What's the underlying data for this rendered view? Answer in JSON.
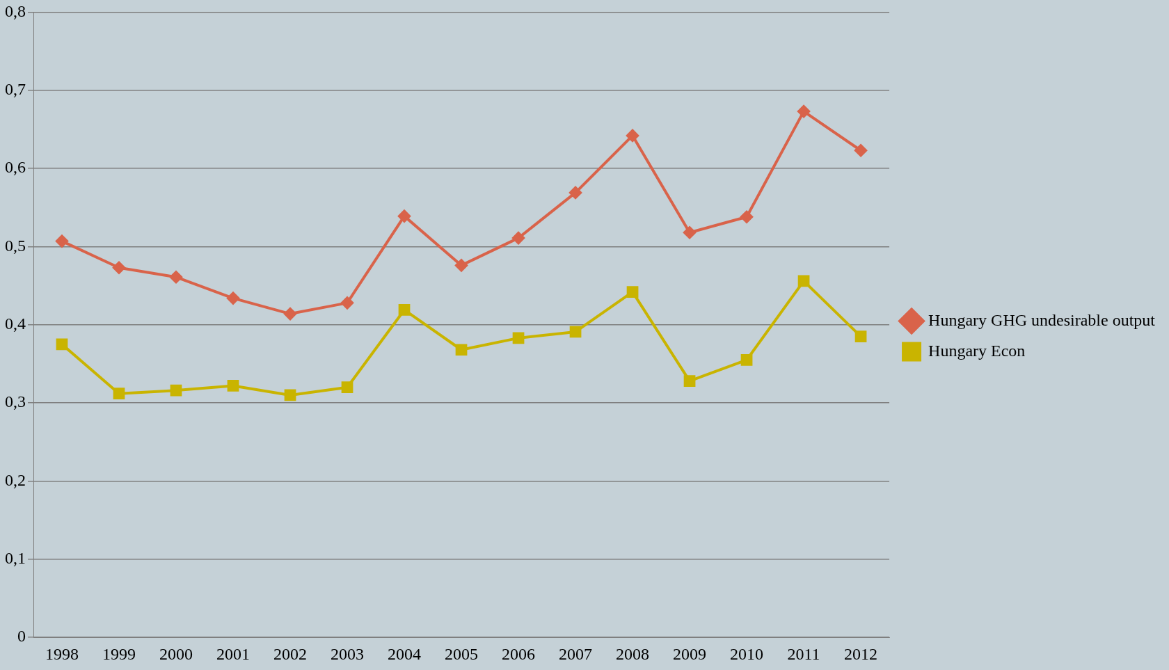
{
  "chart_data": {
    "type": "line",
    "categories": [
      "1998",
      "1999",
      "2000",
      "2001",
      "2002",
      "2003",
      "2004",
      "2005",
      "2006",
      "2007",
      "2008",
      "2009",
      "2010",
      "2011",
      "2012"
    ],
    "series": [
      {
        "name": "Hungary GHG undesirable output",
        "color": "#d9634a",
        "marker": "diamond",
        "values": [
          0.507,
          0.473,
          0.461,
          0.434,
          0.414,
          0.428,
          0.539,
          0.476,
          0.511,
          0.569,
          0.642,
          0.518,
          0.538,
          0.673,
          0.623
        ]
      },
      {
        "name": "Hungary Econ",
        "color": "#c9b400",
        "marker": "square",
        "values": [
          0.375,
          0.312,
          0.316,
          0.322,
          0.31,
          0.32,
          0.419,
          0.368,
          0.383,
          0.391,
          0.442,
          0.328,
          0.355,
          0.456,
          0.385
        ]
      }
    ],
    "ylim": [
      0,
      0.8
    ],
    "yticks": [
      0,
      {
        "value": 0.1,
        "label": "0,1"
      },
      {
        "value": 0.2,
        "label": "0,2"
      },
      {
        "value": 0.3,
        "label": "0,3"
      },
      {
        "value": 0.4,
        "label": "0,4"
      },
      {
        "value": 0.5,
        "label": "0,5"
      },
      {
        "value": 0.6,
        "label": "0,6"
      },
      {
        "value": 0.7,
        "label": "0,7"
      },
      {
        "value": 0.8,
        "label": "0,8"
      }
    ],
    "grid": "y",
    "legend": "right",
    "line_style": "solid"
  }
}
